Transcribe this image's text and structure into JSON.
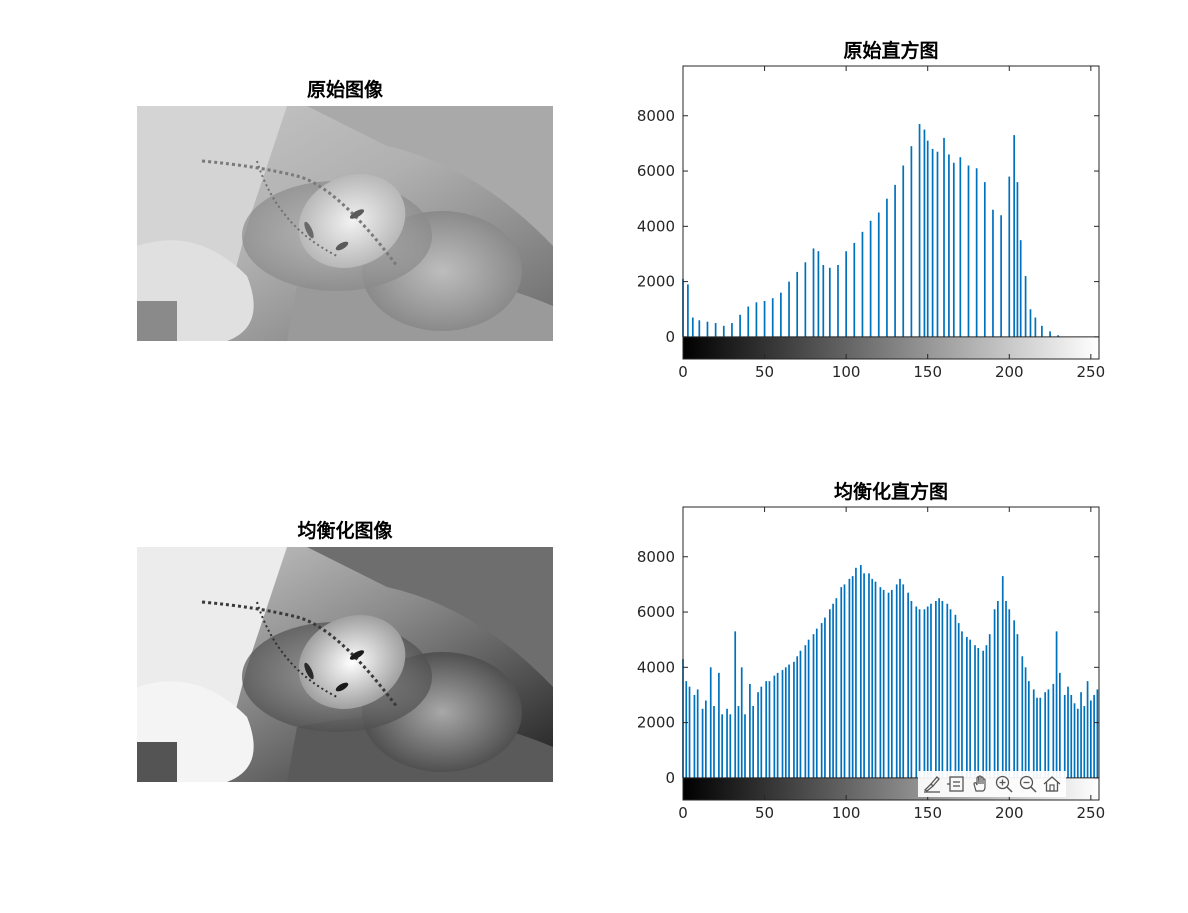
{
  "panels": {
    "orig_image_title": "原始图像",
    "eq_image_title": "均衡化图像"
  },
  "colors": {
    "bar": "#0072BD",
    "axis": "#262626"
  },
  "toolbar": {
    "icons": [
      "brush-icon",
      "datatip-icon",
      "pan-hand-icon",
      "zoom-in-icon",
      "zoom-out-icon",
      "home-icon"
    ]
  },
  "chart_data": [
    {
      "type": "bar",
      "title": "原始直方图",
      "xlim": [
        0,
        255
      ],
      "ylim": [
        -800,
        9800
      ],
      "xticks": [
        0,
        50,
        100,
        150,
        200,
        250
      ],
      "yticks": [
        0,
        2000,
        4000,
        6000,
        8000
      ],
      "colorbar": "grayscale 0-255",
      "x": [
        0,
        3,
        6,
        10,
        15,
        20,
        25,
        30,
        35,
        40,
        45,
        50,
        55,
        60,
        65,
        70,
        75,
        80,
        83,
        86,
        90,
        95,
        100,
        105,
        110,
        115,
        120,
        125,
        130,
        135,
        140,
        145,
        148,
        150,
        153,
        156,
        160,
        163,
        166,
        170,
        175,
        180,
        185,
        190,
        195,
        200,
        203,
        205,
        207,
        210,
        213,
        216,
        220,
        225,
        230,
        235,
        240,
        250,
        255
      ],
      "y": [
        2100,
        1900,
        700,
        600,
        550,
        500,
        400,
        500,
        800,
        1100,
        1250,
        1300,
        1400,
        1600,
        2000,
        2350,
        2700,
        3200,
        3100,
        2600,
        2500,
        2600,
        3100,
        3400,
        3800,
        4200,
        4500,
        5000,
        5500,
        6200,
        6900,
        7700,
        7500,
        7100,
        6800,
        6700,
        7200,
        6600,
        6300,
        6500,
        6200,
        6100,
        5600,
        4600,
        4400,
        5800,
        7300,
        5600,
        3500,
        2200,
        1000,
        700,
        400,
        200,
        60,
        0,
        0,
        0,
        0
      ]
    },
    {
      "type": "bar",
      "title": "均衡化直方图",
      "xlim": [
        0,
        255
      ],
      "ylim": [
        -800,
        9800
      ],
      "xticks": [
        0,
        50,
        100,
        150,
        200,
        250
      ],
      "yticks": [
        0,
        2000,
        4000,
        6000,
        8000
      ],
      "colorbar": "grayscale 0-255",
      "x": [
        0,
        2,
        4,
        7,
        9,
        12,
        14,
        17,
        19,
        22,
        24,
        27,
        29,
        32,
        34,
        36,
        38,
        41,
        43,
        46,
        48,
        51,
        53,
        56,
        58,
        61,
        63,
        65,
        68,
        70,
        72,
        75,
        77,
        80,
        82,
        85,
        87,
        90,
        92,
        94,
        97,
        99,
        102,
        104,
        106,
        109,
        111,
        114,
        116,
        118,
        121,
        123,
        126,
        128,
        131,
        133,
        135,
        138,
        140,
        143,
        145,
        148,
        150,
        152,
        155,
        157,
        159,
        162,
        164,
        167,
        169,
        171,
        174,
        176,
        179,
        181,
        184,
        186,
        188,
        191,
        193,
        196,
        198,
        200,
        203,
        205,
        208,
        210,
        212,
        215,
        217,
        219,
        222,
        224,
        227,
        229,
        231,
        234,
        236,
        238,
        240,
        242,
        244,
        246,
        248,
        250,
        252,
        254
      ],
      "y": [
        4300,
        3500,
        3300,
        3000,
        3200,
        2500,
        2800,
        4000,
        2600,
        3800,
        2300,
        2500,
        2300,
        5300,
        2600,
        4000,
        2300,
        3400,
        2600,
        3100,
        3300,
        3500,
        3500,
        3700,
        3800,
        3900,
        4000,
        4100,
        4200,
        4400,
        4600,
        4800,
        5000,
        5200,
        5400,
        5600,
        5800,
        6100,
        6300,
        6500,
        6900,
        7000,
        7200,
        7300,
        7600,
        7700,
        7400,
        7400,
        7200,
        7100,
        6900,
        6800,
        6700,
        6800,
        7000,
        7200,
        7000,
        6700,
        6400,
        6200,
        6100,
        6100,
        6200,
        6300,
        6400,
        6500,
        6400,
        6300,
        6100,
        5900,
        5600,
        5300,
        5100,
        5000,
        4800,
        4700,
        4600,
        4800,
        5200,
        6100,
        6400,
        7300,
        6400,
        6100,
        5700,
        5200,
        4400,
        4000,
        3500,
        3200,
        2900,
        2900,
        3100,
        3200,
        3400,
        5300,
        3800,
        3000,
        3300,
        3000,
        2700,
        2500,
        3100,
        2600,
        3500,
        2800,
        3000,
        3200
      ]
    }
  ]
}
